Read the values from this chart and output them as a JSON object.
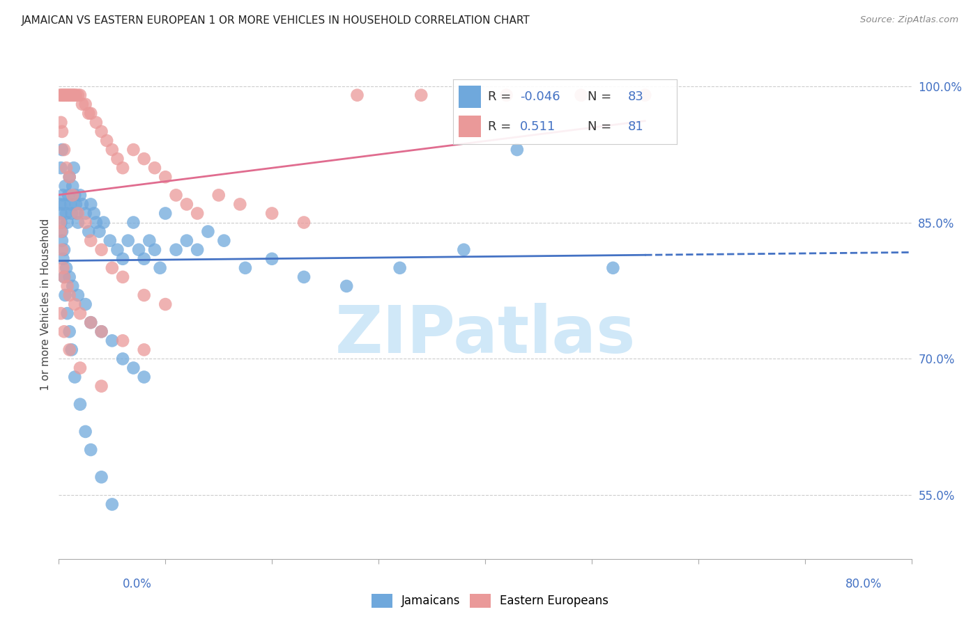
{
  "title": "JAMAICAN VS EASTERN EUROPEAN 1 OR MORE VEHICLES IN HOUSEHOLD CORRELATION CHART",
  "source": "Source: ZipAtlas.com",
  "ylabel": "1 or more Vehicles in Household",
  "y_ticks": [
    0.55,
    0.7,
    0.85,
    1.0
  ],
  "y_tick_labels": [
    "55.0%",
    "70.0%",
    "85.0%",
    "100.0%"
  ],
  "x_left_label": "0.0%",
  "x_right_label": "80.0%",
  "legend_blue_r": "-0.046",
  "legend_blue_n": "83",
  "legend_pink_r": "0.511",
  "legend_pink_n": "81",
  "blue_color": "#6fa8dc",
  "pink_color": "#ea9999",
  "blue_line_color": "#4472c4",
  "pink_line_color": "#e06c8f",
  "watermark": "ZIPatlas",
  "watermark_color": "#d0e8f8",
  "grid_color": "#cccccc",
  "title_color": "#222222",
  "source_color": "#888888",
  "tick_color": "#4472c4",
  "xmin": 0.0,
  "xmax": 0.8,
  "ymin": 0.48,
  "ymax": 1.04
}
